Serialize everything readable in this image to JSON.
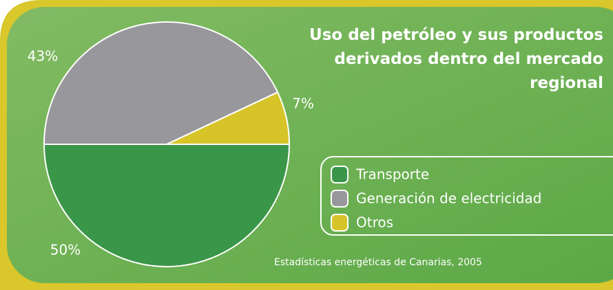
{
  "chart_data": {
    "type": "pie",
    "title": "Uso del petróleo y sus productos derivados dentro del mercado regional",
    "categories": [
      "Transporte",
      "Generación de electricidad",
      "Otros"
    ],
    "values": [
      50,
      43,
      7
    ],
    "value_labels": [
      "50%",
      "43%",
      "7%"
    ],
    "colors": [
      "#3a9648",
      "#98979c",
      "#d7c429"
    ],
    "source": "Estadísticas energéticas de Canarias, 2005"
  }
}
